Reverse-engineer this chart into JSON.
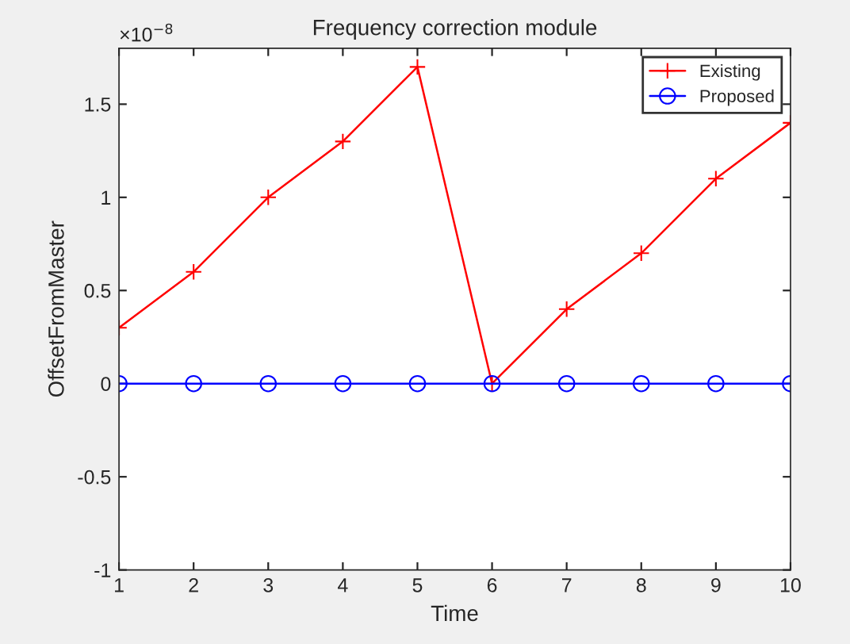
{
  "chart_data": {
    "type": "line",
    "title": "Frequency correction module",
    "xlabel": "Time",
    "ylabel": "OffsetFromMaster",
    "x": [
      1,
      2,
      3,
      4,
      5,
      6,
      7,
      8,
      9,
      10
    ],
    "series": [
      {
        "name": "Existing",
        "color": "#ff0000",
        "marker": "cross",
        "values": [
          0.3,
          0.6,
          1.0,
          1.3,
          1.7,
          0,
          0.4,
          0.7,
          1.1,
          1.4
        ]
      },
      {
        "name": "Proposed",
        "color": "#0000ff",
        "marker": "circle",
        "values": [
          0,
          0,
          0,
          0,
          0,
          0,
          0,
          0,
          0,
          0
        ]
      }
    ],
    "xlim": [
      1,
      10
    ],
    "xticks": [
      1,
      2,
      3,
      4,
      5,
      6,
      7,
      8,
      9,
      10
    ],
    "ylim": [
      -1,
      1.8
    ],
    "yticks": [
      -1,
      -0.5,
      0,
      0.5,
      1,
      1.5
    ],
    "annotations": [
      "×10$^{−8}$"
    ],
    "legend": "top right",
    "grid": false,
    "line_style": "solid"
  }
}
